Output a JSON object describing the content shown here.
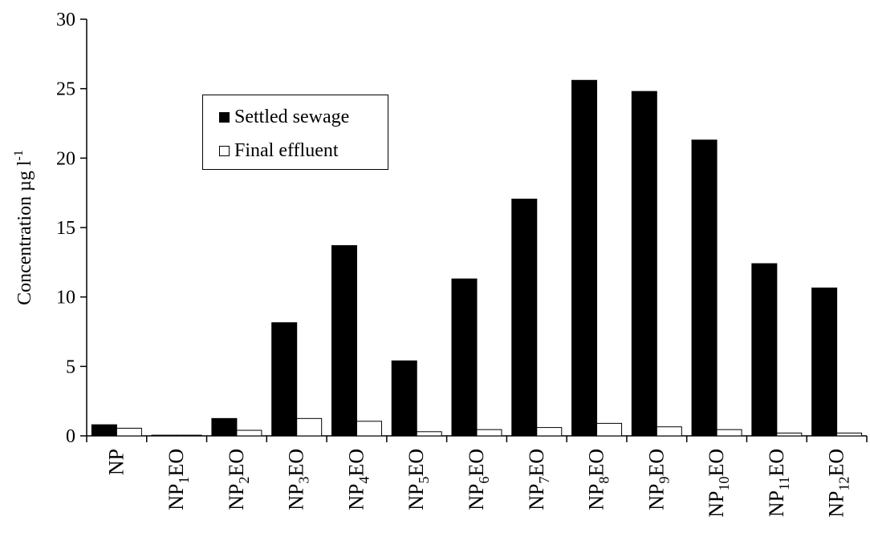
{
  "chart_data": {
    "type": "bar",
    "ylabel": "Concentration µg l",
    "ylabel_sup": "-1",
    "ylim": [
      0,
      30
    ],
    "yticks": [
      "0",
      "5",
      "10",
      "15",
      "20",
      "25",
      "30"
    ],
    "grid": false,
    "legend_position": "top-left",
    "categories": [
      {
        "base": "NP",
        "sub": "",
        "tail": ""
      },
      {
        "base": "NP",
        "sub": "1",
        "tail": "EO"
      },
      {
        "base": "NP",
        "sub": "2",
        "tail": "EO"
      },
      {
        "base": "NP",
        "sub": "3",
        "tail": "EO"
      },
      {
        "base": "NP",
        "sub": "4",
        "tail": "EO"
      },
      {
        "base": "NP",
        "sub": "5",
        "tail": "EO"
      },
      {
        "base": "NP",
        "sub": "6",
        "tail": "EO"
      },
      {
        "base": "NP",
        "sub": "7",
        "tail": "EO"
      },
      {
        "base": "NP",
        "sub": "8",
        "tail": "EO"
      },
      {
        "base": "NP",
        "sub": "9",
        "tail": "EO"
      },
      {
        "base": "NP",
        "sub": "10",
        "tail": "EO"
      },
      {
        "base": "NP",
        "sub": "11",
        "tail": "EO"
      },
      {
        "base": "NP",
        "sub": "12",
        "tail": "EO"
      }
    ],
    "series": [
      {
        "name": "Settled sewage",
        "color": "#000000",
        "values": [
          0.8,
          0.05,
          1.25,
          8.15,
          13.7,
          5.4,
          11.3,
          17.05,
          25.6,
          24.8,
          21.3,
          12.4,
          10.65
        ]
      },
      {
        "name": "Final effluent",
        "color": "#ffffff",
        "values": [
          0.55,
          0.05,
          0.4,
          1.25,
          1.05,
          0.3,
          0.45,
          0.6,
          0.9,
          0.65,
          0.45,
          0.2,
          0.2
        ]
      }
    ]
  }
}
